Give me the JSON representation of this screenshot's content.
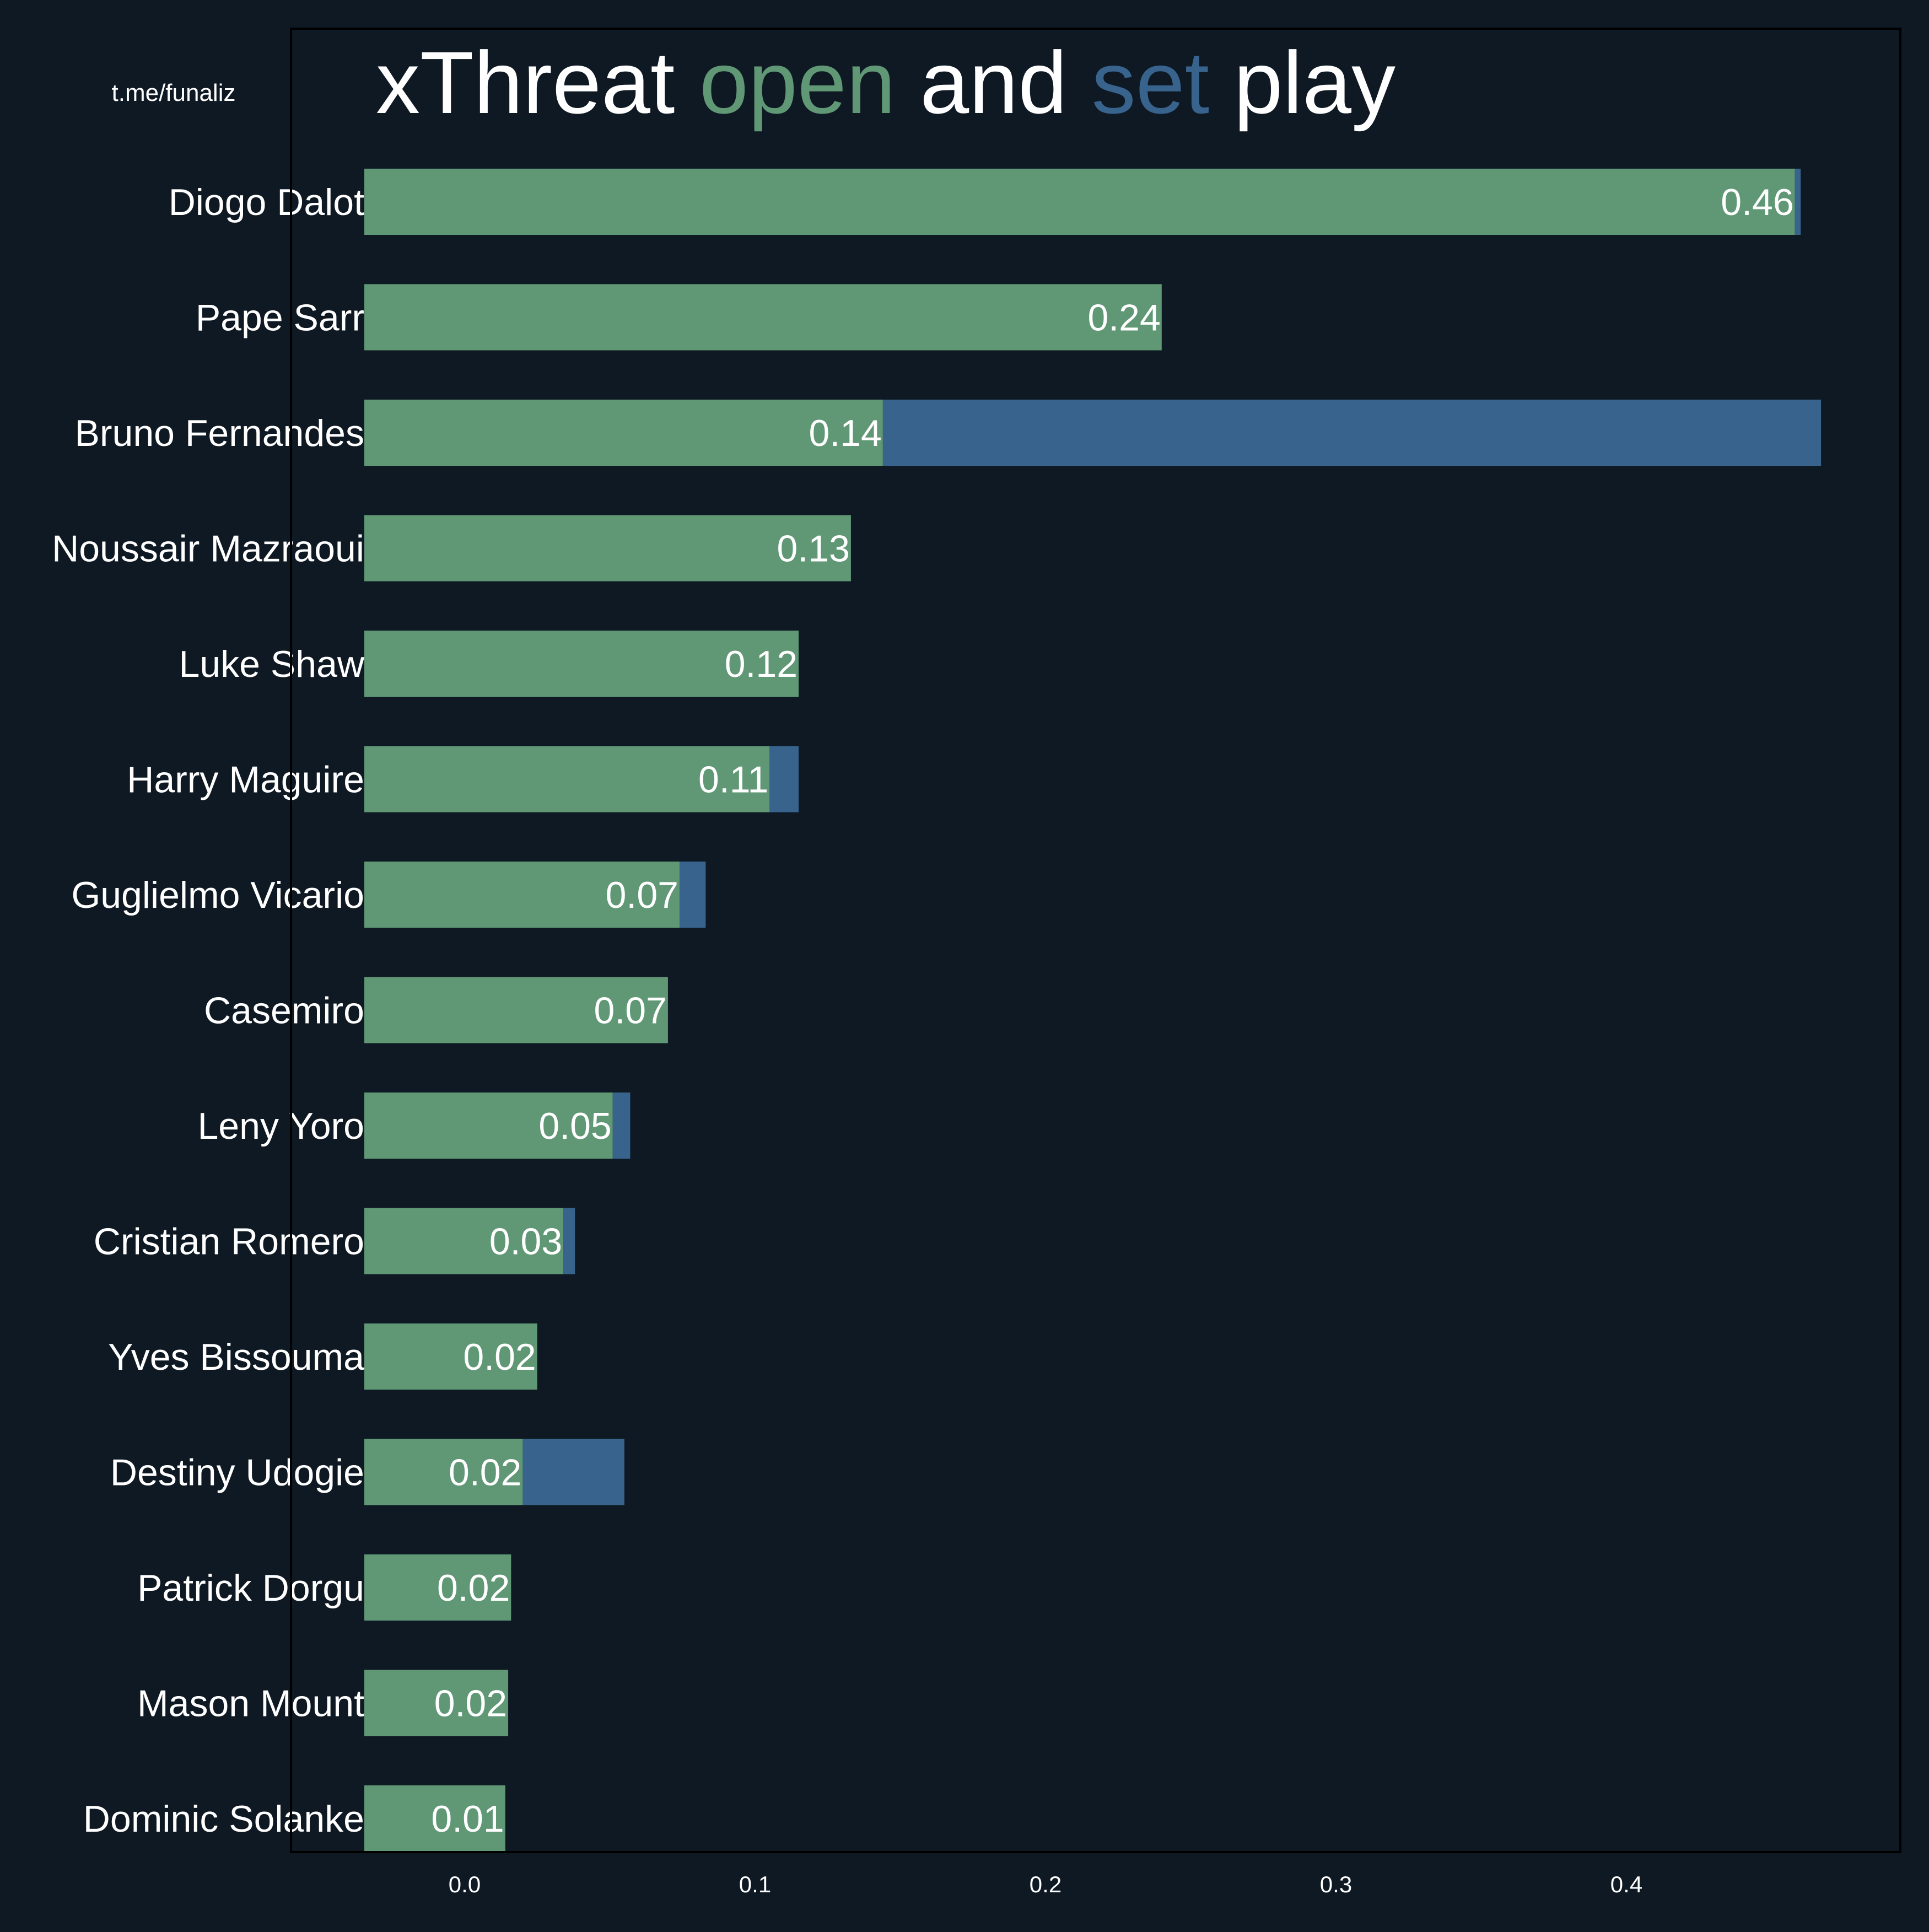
{
  "watermark": "t.me/funaliz",
  "title": {
    "part1": "xThreat ",
    "part2": "open",
    "part3": " and ",
    "part4": "set",
    "part5": " play"
  },
  "colors": {
    "background": "#0f1923",
    "open": "#609876",
    "set": "#38638d",
    "text": "#ffffff",
    "frame": "#000000"
  },
  "chart_data": {
    "type": "bar",
    "orientation": "horizontal",
    "stacked": true,
    "categories": [
      "Diogo Dalot",
      "Pape Sarr",
      "Bruno Fernandes",
      "Noussair Mazraoui",
      "Luke Shaw",
      "Harry Maguire",
      "Guglielmo Vicario",
      "Casemiro",
      "Leny Yoro",
      "Cristian Romero",
      "Yves Bissouma",
      "Destiny Udogie",
      "Patrick Dorgu",
      "Mason Mount",
      "Dominic Solanke"
    ],
    "series": [
      {
        "color": "#609876",
        "values": [
          0.458,
          0.24,
          0.144,
          0.133,
          0.115,
          0.105,
          0.074,
          0.07,
          0.051,
          0.034,
          0.025,
          0.02,
          0.016,
          0.015,
          0.014
        ]
      },
      {
        "color": "#38638d",
        "values": [
          0.002,
          0.0,
          0.323,
          0.0,
          0.0,
          0.01,
          0.009,
          0.0,
          0.006,
          0.004,
          0.0,
          0.035,
          0.0,
          0.0,
          0.0
        ]
      }
    ],
    "data_labels": [
      "0.46",
      "0.24",
      "0.14",
      "0.13",
      "0.12",
      "0.11",
      "0.07",
      "0.07",
      "0.05",
      "0.03",
      "0.02",
      "0.02",
      "0.02",
      "0.02",
      "0.01"
    ],
    "xticks": [
      "0.0",
      "0.1",
      "0.2",
      "0.3",
      "0.4"
    ],
    "xtick_values": [
      0.0,
      0.1,
      0.2,
      0.3,
      0.4
    ],
    "xlim": [
      -0.025,
      0.48
    ],
    "grid": false,
    "legend": "none (colors explained in title)"
  }
}
